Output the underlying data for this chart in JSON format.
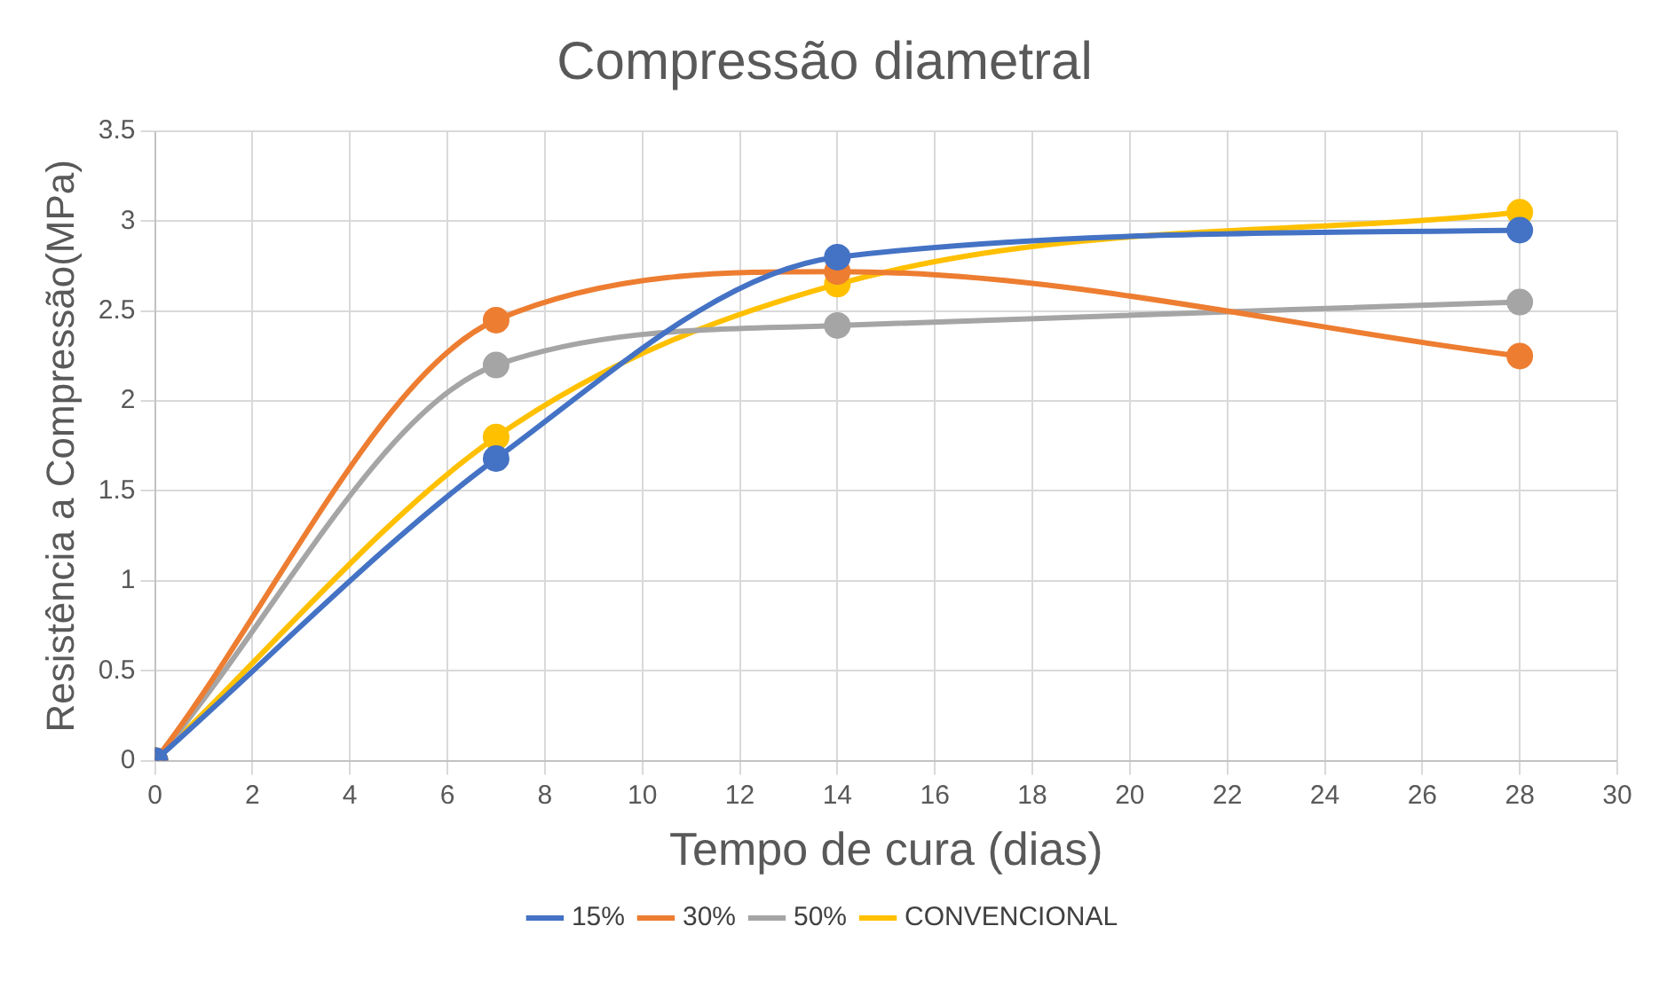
{
  "chart_data": {
    "type": "line",
    "title": "Compressão diametral",
    "xlabel": "Tempo de cura (dias)",
    "ylabel": "Resistência a Compressão(MPa)",
    "x": [
      0,
      7,
      14,
      28
    ],
    "series": [
      {
        "name": "15%",
        "color": "#4472c4",
        "values": [
          0,
          1.68,
          2.8,
          2.95
        ]
      },
      {
        "name": "30%",
        "color": "#ed7d31",
        "values": [
          0,
          2.45,
          2.72,
          2.25
        ]
      },
      {
        "name": "50%",
        "color": "#a5a5a5",
        "values": [
          0,
          2.2,
          2.42,
          2.55
        ]
      },
      {
        "name": "CONVENCIONAL",
        "color": "#ffc000",
        "values": [
          0,
          1.8,
          2.65,
          3.05
        ]
      }
    ],
    "xlim": [
      0,
      30
    ],
    "xticks": [
      0,
      2,
      4,
      6,
      8,
      10,
      12,
      14,
      16,
      18,
      20,
      22,
      24,
      26,
      28,
      30
    ],
    "ylim": [
      0,
      3.5
    ],
    "yticks": [
      0,
      0.5,
      1,
      1.5,
      2,
      2.5,
      3,
      3.5
    ],
    "grid": true,
    "legend": "bottom",
    "marker": "circle",
    "line_style": "solid"
  }
}
